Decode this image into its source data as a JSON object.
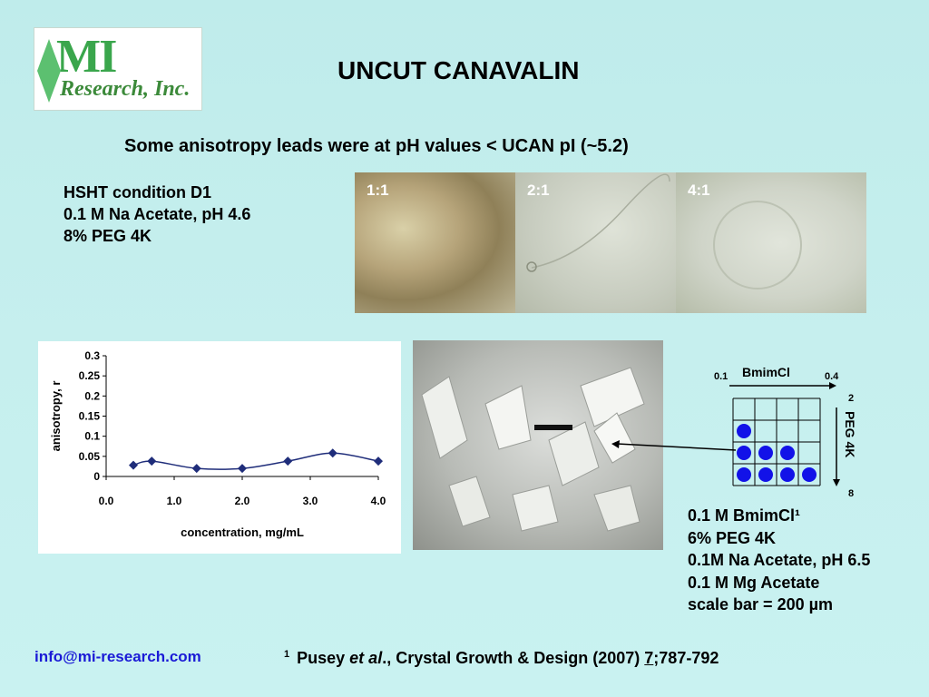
{
  "logo": {
    "line1": "MI",
    "line2": "Research, Inc."
  },
  "title": "UNCUT CANAVALIN",
  "subtitle": "Some anisotropy leads were at pH values < UCAN pI (~5.2)",
  "condition_top": [
    "HSHT condition D1",
    "0.1 M Na Acetate, pH 4.6",
    "8% PEG 4K"
  ],
  "photos": [
    {
      "label": "1:1"
    },
    {
      "label": "2:1"
    },
    {
      "label": "4:1"
    }
  ],
  "chart_data": {
    "type": "line",
    "xlabel": "concentration, mg/mL",
    "ylabel": "anisotropy, r",
    "xlim": [
      0,
      4
    ],
    "ylim": [
      0,
      0.3
    ],
    "x_ticks": [
      "0.0",
      "1.0",
      "2.0",
      "3.0",
      "4.0"
    ],
    "y_ticks": [
      "0",
      "0.05",
      "0.1",
      "0.15",
      "0.2",
      "0.25",
      "0.3"
    ],
    "x": [
      0.4,
      0.67,
      1.33,
      2.0,
      2.67,
      3.33,
      4.0
    ],
    "y": [
      0.028,
      0.038,
      0.02,
      0.02,
      0.038,
      0.058,
      0.038
    ],
    "color": "#1f2d7a",
    "grid": false
  },
  "screen": {
    "top_label": "BmimCl",
    "top_min": "0.1",
    "top_max": "0.4",
    "side_label": "PEG 4K",
    "side_min": "2",
    "side_max": "8",
    "rows": 4,
    "cols": 4,
    "hits": [
      [
        2,
        0
      ],
      [
        3,
        0
      ],
      [
        3,
        1
      ],
      [
        3,
        2
      ],
      [
        4,
        0
      ],
      [
        4,
        1
      ],
      [
        4,
        2
      ],
      [
        4,
        3
      ]
    ],
    "hit_color": "#1212e8"
  },
  "condition_bottom": [
    "0.1 M BmimCl¹",
    "6% PEG 4K",
    "0.1M Na Acetate, pH 6.5",
    "0.1 M Mg Acetate",
    "scale bar = 200 µm"
  ],
  "footer": {
    "email": "info@mi-research.com",
    "ref_mark": "1",
    "ref_author": "Pusey ",
    "ref_etal": "et al",
    "ref_mid": "., Crystal Growth & Design (2007) ",
    "ref_vol": "7",
    "ref_pages": ";787-792"
  }
}
